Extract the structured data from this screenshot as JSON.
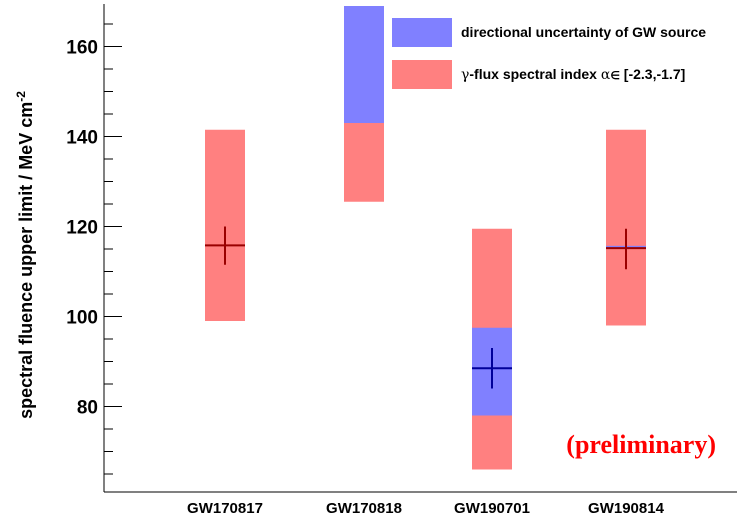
{
  "chart_data": {
    "type": "bar",
    "ylabel": "spectral fluence upper limit / MeV cm",
    "ylabel_sup": "-2",
    "ylim": [
      62,
      169
    ],
    "yticks": [
      80,
      100,
      120,
      140,
      160
    ],
    "categories": [
      "GW170817",
      "GW170818",
      "GW190701",
      "GW190814"
    ],
    "series": [
      {
        "name": "γ-flux spectral index α ∈ [-2.3,-1.7]",
        "color": "#ff8080",
        "ranges": [
          [
            99,
            141.5
          ],
          [
            125.5,
            143
          ],
          [
            66,
            119.5
          ],
          [
            98,
            141.5
          ]
        ]
      },
      {
        "name": "directional uncertainty of GW source",
        "color": "#8080ff",
        "ranges": [
          null,
          [
            143,
            169
          ],
          [
            78,
            97.5
          ],
          [
            115,
            115.7
          ]
        ]
      }
    ],
    "points": [
      {
        "category": "GW170817",
        "value": 115.8,
        "err": [
          111.5,
          120
        ],
        "color": "#990000"
      },
      {
        "category": "GW170818",
        "value": null
      },
      {
        "category": "GW190701",
        "value": 88.5,
        "err": [
          84,
          93
        ],
        "color": "#000099"
      },
      {
        "category": "GW190814",
        "value": 115.2,
        "err": [
          110.5,
          119.5
        ],
        "color": "#990000"
      }
    ],
    "legend": {
      "position": "top-right",
      "entries": [
        {
          "label": "directional uncertainty of GW source",
          "color": "#8080ff"
        },
        {
          "label_prefix": "γ",
          "label_main": "-flux spectral index ",
          "label_alpha": "α",
          "label_in": "∈",
          "label_range": " [-2.3,-1.7]",
          "color": "#ff8080"
        }
      ]
    },
    "annotation": {
      "text": "(preliminary)",
      "color": "#ff0000"
    },
    "grid": false
  }
}
